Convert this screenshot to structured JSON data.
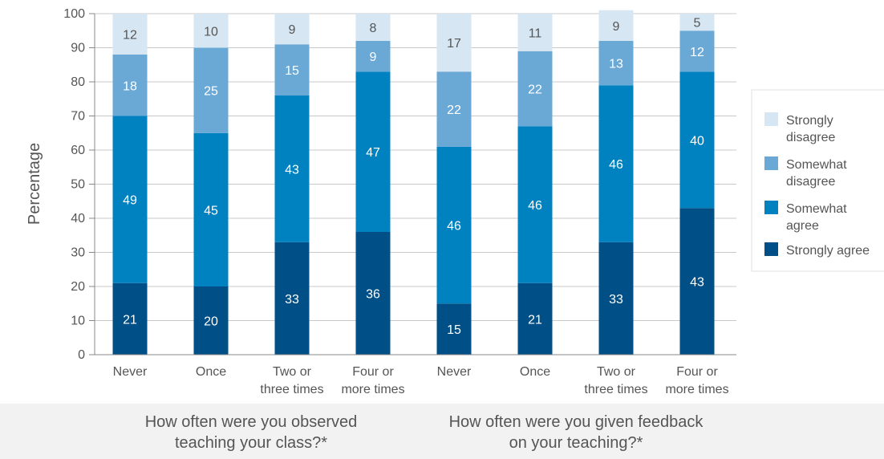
{
  "chart_data": {
    "type": "bar",
    "stacked": true,
    "ylabel": "Percentage",
    "ylim": [
      0,
      100
    ],
    "yticks": [
      0,
      10,
      20,
      30,
      40,
      50,
      60,
      70,
      80,
      90,
      100
    ],
    "grid": true,
    "legend_position": "right",
    "groups": [
      {
        "label_lines": [
          "How often were you observed",
          "teaching your class?*"
        ],
        "categories": [
          {
            "label_lines": [
              "Never"
            ]
          },
          {
            "label_lines": [
              "Once"
            ]
          },
          {
            "label_lines": [
              "Two or",
              "three times"
            ]
          },
          {
            "label_lines": [
              "Four or",
              "more times"
            ]
          }
        ]
      },
      {
        "label_lines": [
          "How often were you given feedback",
          "on your teaching?*"
        ],
        "categories": [
          {
            "label_lines": [
              "Never"
            ]
          },
          {
            "label_lines": [
              "Once"
            ]
          },
          {
            "label_lines": [
              "Two or",
              "three times"
            ]
          },
          {
            "label_lines": [
              "Four or",
              "more times"
            ]
          }
        ]
      }
    ],
    "series": [
      {
        "name_lines": [
          "Strongly agree"
        ],
        "color": "#004f86",
        "label_color": "#ffffff",
        "values": [
          21,
          20,
          33,
          36,
          15,
          21,
          33,
          43
        ]
      },
      {
        "name_lines": [
          "Somewhat",
          "agree"
        ],
        "color": "#0082c1",
        "label_color": "#ffffff",
        "values": [
          49,
          45,
          43,
          47,
          46,
          46,
          46,
          40
        ]
      },
      {
        "name_lines": [
          "Somewhat",
          "disagree"
        ],
        "color": "#6aa8d6",
        "label_color": "#ffffff",
        "values": [
          18,
          25,
          15,
          9,
          22,
          22,
          13,
          12
        ]
      },
      {
        "name_lines": [
          "Strongly",
          "disagree"
        ],
        "color": "#d6e6f3",
        "label_color": "#555555",
        "values": [
          12,
          10,
          9,
          8,
          17,
          11,
          9,
          5
        ]
      }
    ]
  }
}
